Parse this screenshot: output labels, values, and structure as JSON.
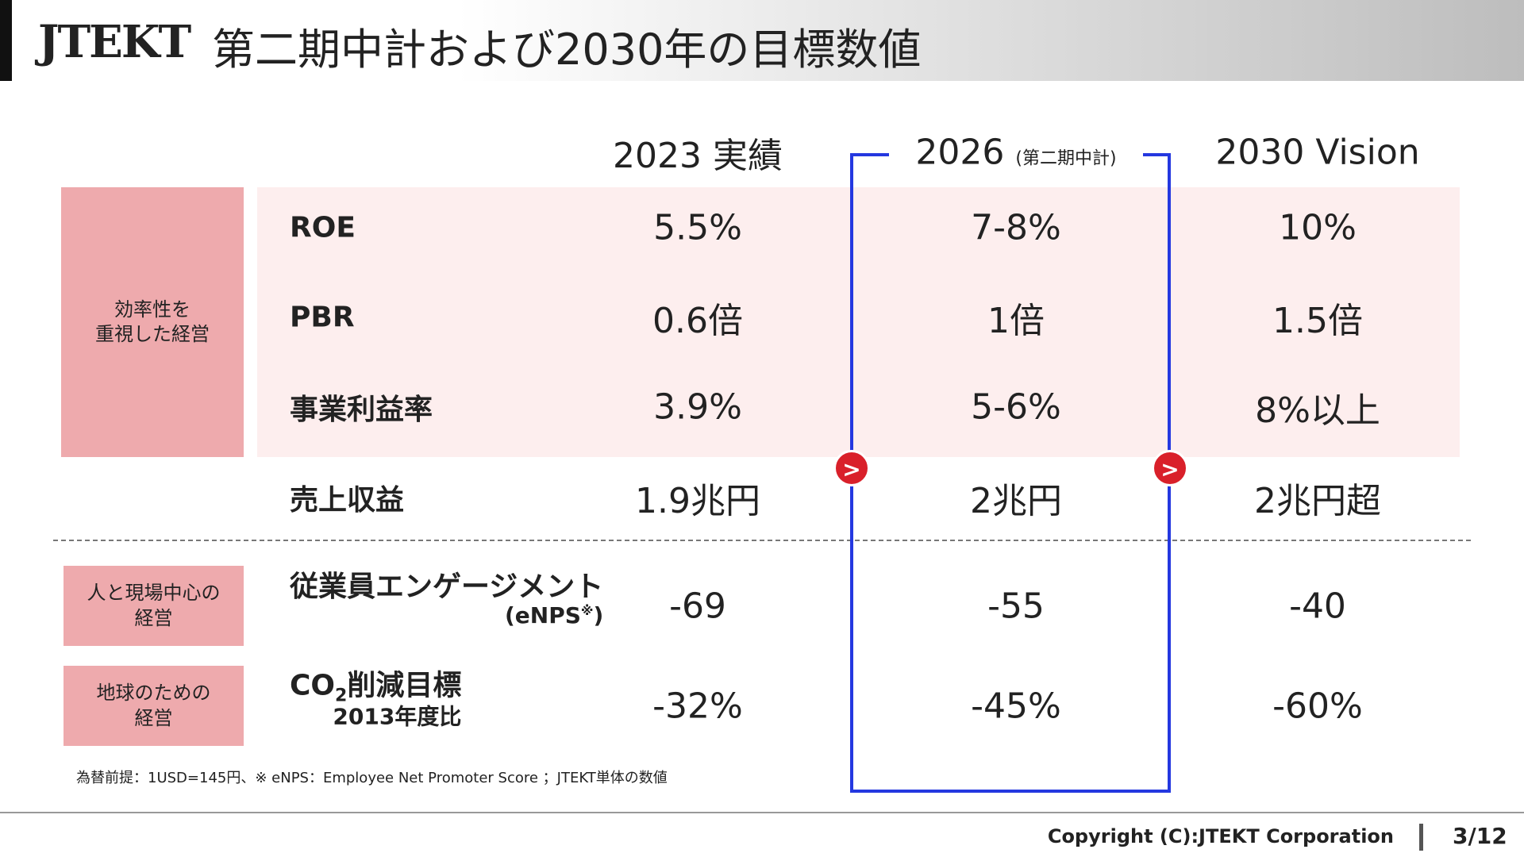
{
  "header": {
    "logo": "JTEKT",
    "title": "第二期中計および2030年の目標数値"
  },
  "columns": [
    {
      "label": "2023 実績"
    },
    {
      "label": "2026",
      "note": "(第二期中計)"
    },
    {
      "label": "2030 Vision"
    }
  ],
  "groups": [
    {
      "label": "効率性を\n重視した経営"
    },
    {
      "label": "人と現場中心の\n経営"
    },
    {
      "label": "地球のための\n経営"
    }
  ],
  "rows": [
    {
      "label": "ROE",
      "values": [
        "5.5%",
        "7-8%",
        "10%"
      ]
    },
    {
      "label": "PBR",
      "values": [
        "0.6倍",
        "1倍",
        "1.5倍"
      ]
    },
    {
      "label": "事業利益率",
      "values": [
        "3.9%",
        "5-6%",
        "8%以上"
      ]
    },
    {
      "label": "売上収益",
      "values": [
        "1.9兆円",
        "2兆円",
        "2兆円超"
      ]
    },
    {
      "label": "従業員エンゲージメント",
      "sub": "(eNPS",
      "sup": "※",
      "sub_end": ")",
      "values": [
        "-69",
        "-55",
        "-40"
      ]
    },
    {
      "label": "CO",
      "label_sub": "2",
      "label_rest": "削減目標",
      "sub": "2013年度比",
      "values": [
        "-32%",
        "-45%",
        "-60%"
      ]
    }
  ],
  "footnote": "為替前提：1USD=145円、※ eNPS：Employee Net Promoter Score ；JTEKT単体の数値",
  "footer": {
    "copyright": "Copyright (C):JTEKT Corporation",
    "page": "3/12"
  }
}
